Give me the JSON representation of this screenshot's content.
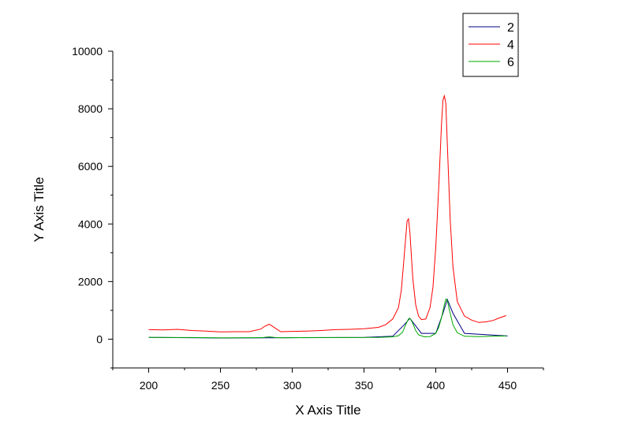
{
  "chart_data": {
    "type": "line",
    "title": "",
    "xlabel": "X Axis Title",
    "ylabel": "Y Axis Title",
    "xlim": [
      175,
      475
    ],
    "ylim": [
      -1000,
      10000
    ],
    "xticks": [
      200,
      250,
      300,
      350,
      400,
      450
    ],
    "xtick_labels": [
      "200",
      "250",
      "300",
      "350",
      "400",
      "450"
    ],
    "yticks": [
      0,
      2000,
      4000,
      6000,
      8000,
      10000
    ],
    "ytick_labels": [
      "0",
      "2000",
      "4000",
      "6000",
      "8000",
      "10000"
    ],
    "grid": false,
    "legend_position": "top-right",
    "series": [
      {
        "name": "2",
        "color": "#000080",
        "x": [
          200,
          250,
          300,
          350,
          370,
          378,
          382,
          390,
          400,
          405,
          408,
          412,
          420,
          450
        ],
        "y": [
          60,
          40,
          50,
          60,
          100,
          500,
          720,
          200,
          200,
          900,
          1380,
          900,
          200,
          110
        ]
      },
      {
        "name": "4",
        "color": "#ff0000",
        "x": [
          200,
          210,
          220,
          230,
          240,
          250,
          260,
          270,
          278,
          281,
          284,
          287,
          292,
          300,
          310,
          320,
          330,
          340,
          350,
          360,
          365,
          370,
          374,
          376,
          378,
          380,
          381,
          382,
          384,
          386,
          388,
          390,
          393,
          396,
          398,
          400,
          402,
          404,
          405,
          406,
          407,
          408,
          410,
          412,
          415,
          420,
          425,
          430,
          435,
          440,
          445,
          449
        ],
        "y": [
          330,
          320,
          340,
          300,
          280,
          250,
          260,
          260,
          350,
          450,
          520,
          420,
          260,
          270,
          280,
          300,
          330,
          340,
          360,
          410,
          500,
          700,
          1100,
          1700,
          2900,
          4100,
          4180,
          3700,
          2100,
          1200,
          800,
          680,
          700,
          1100,
          1800,
          3200,
          5200,
          7500,
          8300,
          8450,
          8200,
          6800,
          4200,
          2500,
          1300,
          800,
          660,
          580,
          600,
          650,
          750,
          820
        ]
      },
      {
        "name": "6",
        "color": "#00aa00",
        "x": [
          200,
          210,
          220,
          230,
          240,
          250,
          260,
          270,
          280,
          284,
          288,
          295,
          300,
          320,
          340,
          360,
          370,
          374,
          377,
          379,
          381,
          382,
          384,
          386,
          388,
          392,
          396,
          400,
          402,
          404,
          406,
          407,
          408,
          410,
          412,
          415,
          420,
          430,
          440,
          449
        ],
        "y": [
          60,
          60,
          55,
          55,
          50,
          45,
          45,
          50,
          55,
          80,
          55,
          45,
          50,
          55,
          55,
          60,
          80,
          120,
          250,
          500,
          700,
          730,
          550,
          300,
          150,
          80,
          90,
          200,
          400,
          750,
          1200,
          1390,
          1350,
          900,
          500,
          220,
          100,
          90,
          100,
          110
        ]
      }
    ]
  }
}
